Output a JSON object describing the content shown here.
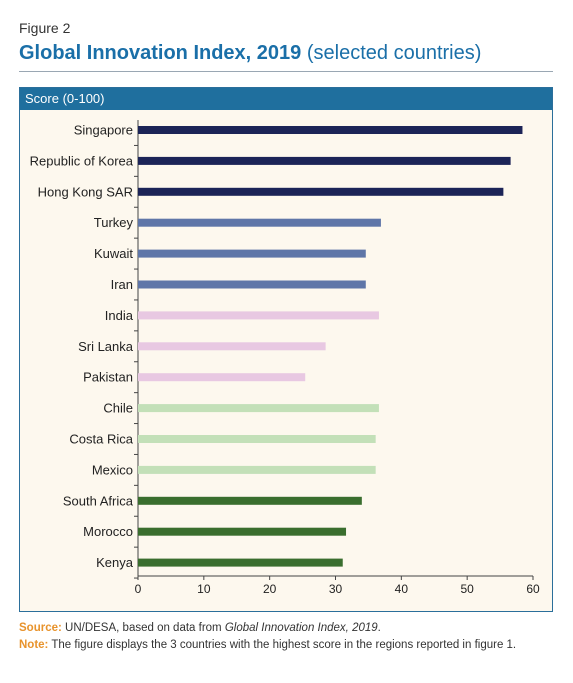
{
  "figure_label": "Figure 2",
  "title_main": "Global Innovation Index, 2019",
  "title_sub": "(selected countries)",
  "panel_header": "Score (0-100)",
  "source_label": "Source:",
  "source_text_pre": "UN/DESA, based on data from ",
  "source_text_italic": "Global Innovation Index, 2019",
  "source_text_post": ".",
  "note_label": "Note:",
  "note_text": "The figure displays the 3 countries with the highest score in the regions reported in figure 1.",
  "colors": {
    "region1": "#1c2457",
    "region2": "#5f76a8",
    "region3": "#e8c8e2",
    "region4": "#c3e0b8",
    "region5": "#3a6e2e",
    "accent": "#1a6fa8",
    "source_label": "#e8932c"
  },
  "chart_data": {
    "type": "bar",
    "orientation": "horizontal",
    "categories": [
      "Singapore",
      "Republic of Korea",
      "Hong Kong SAR",
      "Turkey",
      "Kuwait",
      "Iran",
      "India",
      "Sri Lanka",
      "Pakistan",
      "Chile",
      "Costa Rica",
      "Mexico",
      "South Africa",
      "Morocco",
      "Kenya"
    ],
    "values": [
      58.4,
      56.6,
      55.5,
      36.9,
      34.6,
      34.6,
      36.6,
      28.5,
      25.4,
      36.6,
      36.1,
      36.1,
      34.0,
      31.6,
      31.1
    ],
    "group_colors": [
      "region1",
      "region1",
      "region1",
      "region2",
      "region2",
      "region2",
      "region3",
      "region3",
      "region3",
      "region4",
      "region4",
      "region4",
      "region5",
      "region5",
      "region5"
    ],
    "xlim": [
      0,
      60
    ],
    "xticks": [
      "0",
      "10",
      "20",
      "30",
      "40",
      "50",
      "60"
    ],
    "grid": false,
    "legend": "none"
  }
}
